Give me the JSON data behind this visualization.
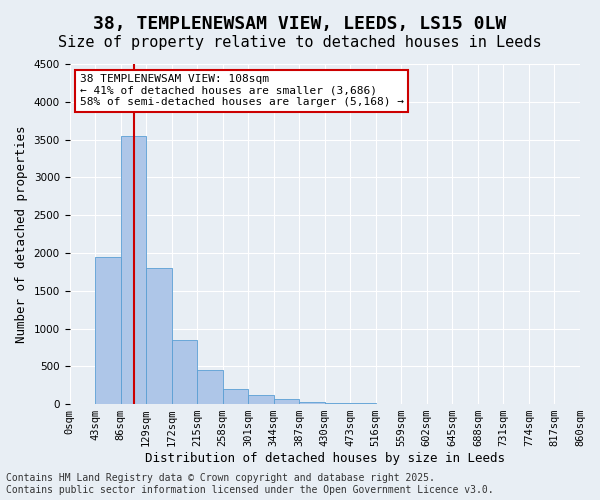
{
  "title_line1": "38, TEMPLENEWSAM VIEW, LEEDS, LS15 0LW",
  "title_line2": "Size of property relative to detached houses in Leeds",
  "xlabel": "Distribution of detached houses by size in Leeds",
  "ylabel": "Number of detached properties",
  "annotation_line1": "38 TEMPLENEWSAM VIEW: 108sqm",
  "annotation_line2": "← 41% of detached houses are smaller (3,686)",
  "annotation_line3": "58% of semi-detached houses are larger (5,168) →",
  "footer_line1": "Contains HM Land Registry data © Crown copyright and database right 2025.",
  "footer_line2": "Contains public sector information licensed under the Open Government Licence v3.0.",
  "bin_labels": [
    "0sqm",
    "43sqm",
    "86sqm",
    "129sqm",
    "172sqm",
    "215sqm",
    "258sqm",
    "301sqm",
    "344sqm",
    "387sqm",
    "430sqm",
    "473sqm",
    "516sqm",
    "559sqm",
    "602sqm",
    "645sqm",
    "688sqm",
    "731sqm",
    "774sqm",
    "817sqm",
    "860sqm"
  ],
  "bar_values": [
    0,
    1950,
    3550,
    1800,
    850,
    450,
    200,
    120,
    70,
    30,
    20,
    10,
    5,
    3,
    2,
    1,
    1,
    0,
    0,
    0
  ],
  "bar_color": "#aec6e8",
  "bar_edge_color": "#5a9fd4",
  "vline_x": 2.51,
  "vline_color": "#cc0000",
  "ylim": [
    0,
    4500
  ],
  "yticks": [
    0,
    500,
    1000,
    1500,
    2000,
    2500,
    3000,
    3500,
    4000,
    4500
  ],
  "bg_color": "#e8eef4",
  "plot_bg_color": "#e8eef4",
  "grid_color": "#ffffff",
  "annotation_box_color": "#cc0000",
  "title_fontsize": 13,
  "subtitle_fontsize": 11,
  "axis_label_fontsize": 9,
  "tick_fontsize": 7.5,
  "annotation_fontsize": 8,
  "footer_fontsize": 7
}
